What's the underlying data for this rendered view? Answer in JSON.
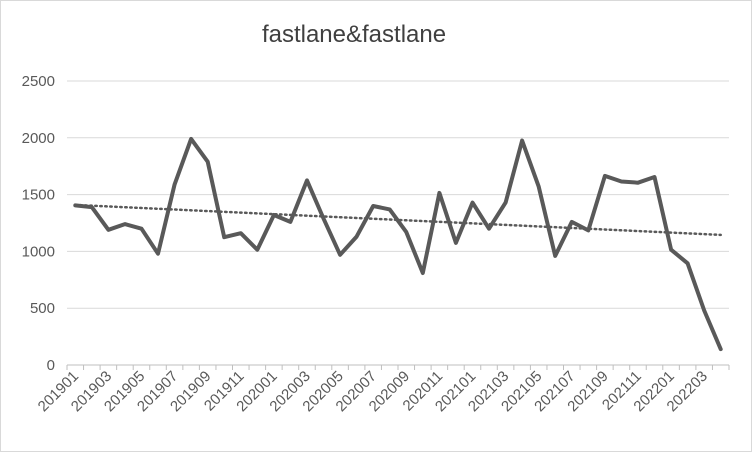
{
  "chart_data": {
    "type": "line",
    "title": "fastlane&fastlane",
    "xlabel": "",
    "ylabel": "",
    "ylim": [
      0,
      2500
    ],
    "yticks": [
      0,
      500,
      1000,
      1500,
      2000,
      2500
    ],
    "grid": true,
    "legend": "none",
    "categories": [
      "201901",
      "201902",
      "201903",
      "201904",
      "201905",
      "201906",
      "201907",
      "201908",
      "201909",
      "201910",
      "201911",
      "201912",
      "202001",
      "202002",
      "202003",
      "202004",
      "202005",
      "202006",
      "202007",
      "202008",
      "202009",
      "202010",
      "202011",
      "202012",
      "202101",
      "202102",
      "202103",
      "202104",
      "202105",
      "202106",
      "202107",
      "202108",
      "202109",
      "202110",
      "202111",
      "202112",
      "202201",
      "202202",
      "202203",
      "202204"
    ],
    "xtick_labels": [
      "201901",
      "201903",
      "201905",
      "201907",
      "201909",
      "201911",
      "202001",
      "202003",
      "202005",
      "202007",
      "202009",
      "202011",
      "202101",
      "202103",
      "202105",
      "202107",
      "202109",
      "202111",
      "202201",
      "202203"
    ],
    "series": [
      {
        "values": [
          1405,
          1390,
          1190,
          1240,
          1200,
          980,
          1590,
          1990,
          1790,
          1125,
          1160,
          1015,
          1320,
          1260,
          1625,
          1290,
          970,
          1130,
          1400,
          1370,
          1170,
          810,
          1515,
          1075,
          1430,
          1200,
          1430,
          1975,
          1570,
          960,
          1260,
          1185,
          1665,
          1615,
          1605,
          1655,
          1015,
          895,
          480,
          140
        ],
        "color": "#595959"
      }
    ],
    "trendline": {
      "type": "linear",
      "style": "dotted",
      "color": "#595959"
    }
  }
}
